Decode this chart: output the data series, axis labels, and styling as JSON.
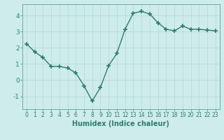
{
  "x": [
    0,
    1,
    2,
    3,
    4,
    5,
    6,
    7,
    8,
    9,
    10,
    11,
    12,
    13,
    14,
    15,
    16,
    17,
    18,
    19,
    20,
    21,
    22,
    23
  ],
  "y": [
    2.25,
    1.75,
    1.4,
    0.85,
    0.85,
    0.75,
    0.45,
    -0.35,
    -1.3,
    -0.45,
    0.9,
    1.65,
    3.15,
    4.15,
    4.25,
    4.1,
    3.55,
    3.15,
    3.05,
    3.35,
    3.15,
    3.15,
    3.1,
    3.05
  ],
  "line_color": "#2e7d6e",
  "marker": "+",
  "markersize": 4,
  "linewidth": 1.0,
  "xlabel": "Humidex (Indice chaleur)",
  "xlabel_fontsize": 7,
  "ylim": [
    -1.8,
    4.7
  ],
  "yticks": [
    -1,
    0,
    1,
    2,
    3,
    4
  ],
  "xtick_labels": [
    "0",
    "1",
    "2",
    "3",
    "4",
    "5",
    "6",
    "7",
    "8",
    "9",
    "10",
    "11",
    "12",
    "13",
    "14",
    "15",
    "16",
    "17",
    "18",
    "19",
    "20",
    "21",
    "22",
    "23"
  ],
  "bg_color": "#ceecea",
  "grid_color": "#b8dbd8",
  "tick_color": "#2e7d6e",
  "tick_fontsize": 5.5,
  "spine_color": "#6aada5",
  "xlabel_color": "#2e7d6e",
  "markeredgewidth": 1.2
}
